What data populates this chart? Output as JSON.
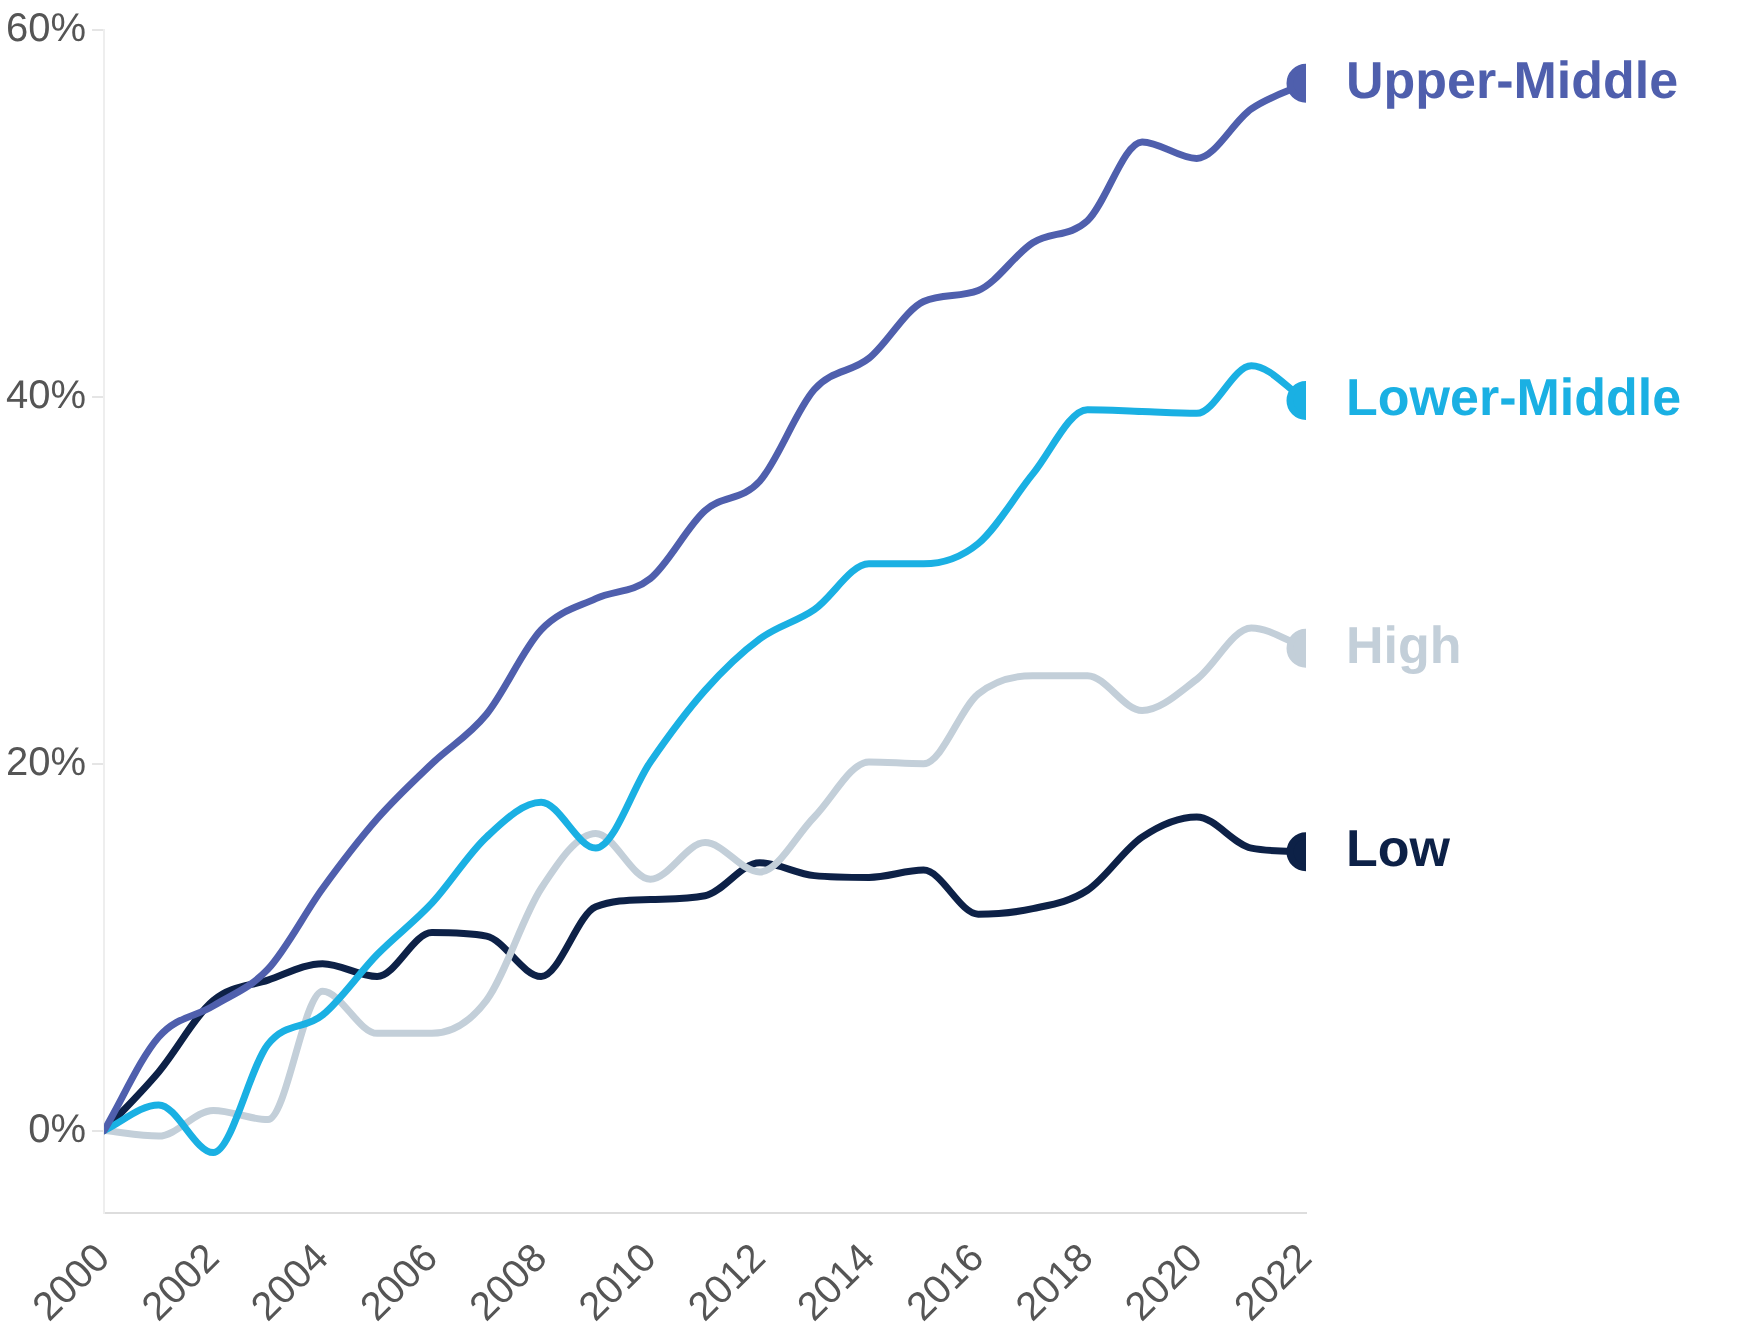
{
  "chart_data": {
    "type": "line",
    "x": [
      2000,
      2001,
      2002,
      2003,
      2004,
      2005,
      2006,
      2007,
      2008,
      2009,
      2010,
      2011,
      2012,
      2013,
      2014,
      2015,
      2016,
      2017,
      2018,
      2019,
      2020,
      2021,
      2022
    ],
    "series": [
      {
        "name": "Upper-Middle",
        "color": "#4f5fad",
        "values": [
          0,
          5.1,
          6.8,
          8.8,
          13.2,
          17,
          20,
          22.7,
          27.3,
          29,
          30.1,
          33.8,
          35.4,
          40.4,
          42.1,
          45.2,
          45.8,
          48.4,
          49.6,
          53.9,
          53,
          55.7,
          57.1
        ]
      },
      {
        "name": "Lower-Middle",
        "color": "#1ab0e3",
        "values": [
          0,
          1.4,
          -1.2,
          4.7,
          6.3,
          9.6,
          12.4,
          16,
          17.9,
          15.4,
          20.1,
          24,
          26.8,
          28.4,
          30.9,
          30.9,
          32,
          35.8,
          39.3,
          39.2,
          39.1,
          41.7,
          39.8
        ]
      },
      {
        "name": "High",
        "color": "#c3cfd9",
        "values": [
          0,
          -0.3,
          1.1,
          0.6,
          7.6,
          5.3,
          5.3,
          7.1,
          13.2,
          16.2,
          13.7,
          15.7,
          14.1,
          17.1,
          20.1,
          20,
          23.8,
          24.8,
          24.8,
          22.9,
          24.6,
          27.4,
          26.3
        ]
      },
      {
        "name": "Low",
        "color": "#0d2147",
        "values": [
          0,
          3.2,
          7.1,
          8.2,
          9.1,
          8.4,
          10.8,
          10.6,
          8.4,
          12.2,
          12.6,
          12.8,
          14.6,
          13.9,
          13.8,
          14.2,
          11.8,
          12.1,
          13.1,
          16,
          17.1,
          15.4,
          15.2
        ]
      }
    ],
    "xlim": [
      2000,
      2022
    ],
    "xticks": [
      2000,
      2002,
      2004,
      2006,
      2008,
      2010,
      2012,
      2014,
      2016,
      2018,
      2020,
      2022
    ],
    "ylim": [
      -4.5,
      60
    ],
    "yticks": [
      {
        "value": 0,
        "label": "0%"
      },
      {
        "value": 20,
        "label": "20%"
      },
      {
        "value": 40,
        "label": "40%"
      },
      {
        "value": 60,
        "label": "60%"
      }
    ],
    "grid": false,
    "legend": false
  }
}
